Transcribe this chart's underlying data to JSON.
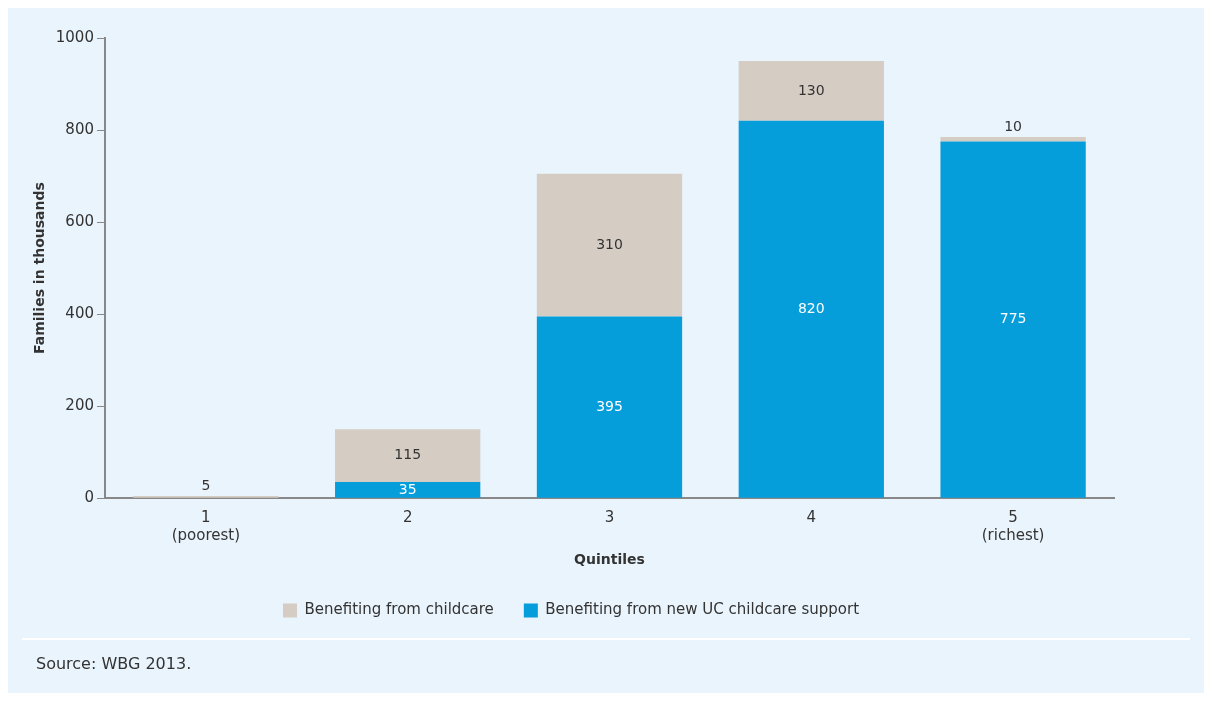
{
  "chart_data": {
    "type": "bar",
    "stacked": true,
    "xlabel": "Quintiles",
    "ylabel": "Families in thousands",
    "categories": [
      "1\n(poorest)",
      "2",
      "3",
      "4",
      "5\n(richest)"
    ],
    "series": [
      {
        "name": "Benefiting from new UC childcare support",
        "color": "#069ddb",
        "values": [
          null,
          35,
          395,
          820,
          775
        ],
        "value_labels": [
          null,
          "35",
          "395",
          "820",
          "775"
        ]
      },
      {
        "name": "Benefiting from childcare",
        "color": "#d5cdc4",
        "values": [
          5,
          115,
          310,
          130,
          10
        ],
        "value_labels": [
          "5",
          "115",
          "310",
          "130",
          "10"
        ]
      }
    ],
    "ylim": [
      0,
      1000
    ],
    "yticks": [
      0,
      200,
      400,
      600,
      800,
      1000
    ],
    "grid": false,
    "legend": "bottom",
    "annotations": [
      "Source: WBG 2013."
    ]
  }
}
